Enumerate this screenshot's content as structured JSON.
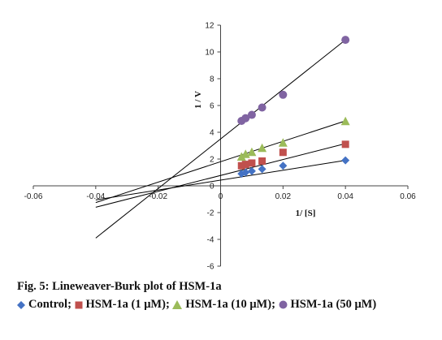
{
  "figure": {
    "caption_title": "Fig. 5: Lineweaver-Burk plot of HSM-1a"
  },
  "legend": {
    "items": [
      {
        "label": "Control;",
        "marker": "diamond",
        "color": "#4472C4"
      },
      {
        "label": "HSM-1a (1 μM);",
        "marker": "square",
        "color": "#C0504D"
      },
      {
        "label": "HSM-1a (10 μM);",
        "marker": "triangle",
        "color": "#9BBB59"
      },
      {
        "label": "HSM-1a (50 μM)",
        "marker": "circle",
        "color": "#8064A2"
      }
    ]
  },
  "chart_data": {
    "type": "scatter",
    "xlabel": "1/ [S]",
    "ylabel": "1 / V",
    "xlim": [
      -0.06,
      0.06
    ],
    "ylim": [
      -6,
      12
    ],
    "x_ticks": [
      "-0.06",
      "-0.04",
      "-0.02",
      "0",
      "0.02",
      "0.04",
      "0.06"
    ],
    "y_ticks": [
      "-6",
      "-4",
      "-2",
      "0",
      "2",
      "4",
      "6",
      "8",
      "10",
      "12"
    ],
    "grid": false,
    "trendlines": true,
    "series": [
      {
        "name": "Control",
        "marker": "diamond",
        "color": "#4472C4",
        "points": [
          [
            0.0067,
            0.9
          ],
          [
            0.008,
            1.0
          ],
          [
            0.01,
            1.1
          ],
          [
            0.0133,
            1.25
          ],
          [
            0.02,
            1.5
          ],
          [
            0.04,
            1.9
          ]
        ],
        "line": {
          "x": [
            -0.04,
            0.04
          ],
          "y": [
            -1.05,
            1.9
          ]
        }
      },
      {
        "name": "HSM-1a (1 μM)",
        "marker": "square",
        "color": "#C0504D",
        "points": [
          [
            0.0067,
            1.5
          ],
          [
            0.008,
            1.6
          ],
          [
            0.01,
            1.7
          ],
          [
            0.0133,
            1.85
          ],
          [
            0.02,
            2.5
          ],
          [
            0.04,
            3.1
          ]
        ],
        "line": {
          "x": [
            -0.04,
            0.04
          ],
          "y": [
            -1.6,
            3.15
          ]
        }
      },
      {
        "name": "HSM-1a (10 μM)",
        "marker": "triangle",
        "color": "#9BBB59",
        "points": [
          [
            0.0067,
            2.15
          ],
          [
            0.008,
            2.35
          ],
          [
            0.01,
            2.5
          ],
          [
            0.0133,
            2.8
          ],
          [
            0.02,
            3.2
          ],
          [
            0.04,
            4.8
          ]
        ],
        "line": {
          "x": [
            -0.04,
            0.04
          ],
          "y": [
            -1.25,
            4.85
          ]
        }
      },
      {
        "name": "HSM-1a (50 μM)",
        "marker": "circle",
        "color": "#8064A2",
        "points": [
          [
            0.0067,
            4.85
          ],
          [
            0.008,
            5.05
          ],
          [
            0.01,
            5.3
          ],
          [
            0.0133,
            5.85
          ],
          [
            0.02,
            6.8
          ],
          [
            0.04,
            10.9
          ]
        ],
        "line": {
          "x": [
            -0.04,
            0.04
          ],
          "y": [
            -3.9,
            10.9
          ]
        }
      }
    ]
  }
}
